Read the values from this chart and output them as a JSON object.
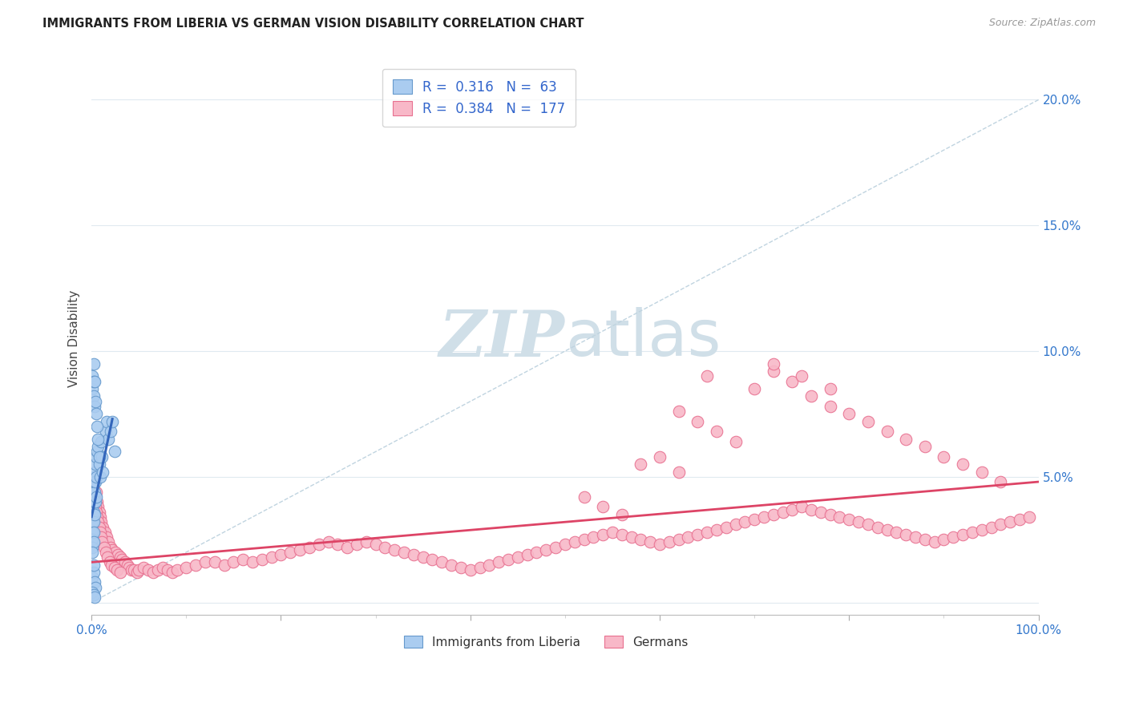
{
  "title": "IMMIGRANTS FROM LIBERIA VS GERMAN VISION DISABILITY CORRELATION CHART",
  "source": "Source: ZipAtlas.com",
  "ylabel": "Vision Disability",
  "xlim": [
    0.0,
    1.0
  ],
  "ylim": [
    -0.005,
    0.215
  ],
  "x_ticks": [
    0.0,
    0.2,
    0.4,
    0.6,
    0.8,
    1.0
  ],
  "x_tick_labels": [
    "0.0%",
    "",
    "",
    "",
    "",
    "100.0%"
  ],
  "y_ticks": [
    0.0,
    0.05,
    0.1,
    0.15,
    0.2
  ],
  "y_tick_labels": [
    "",
    "5.0%",
    "10.0%",
    "15.0%",
    "20.0%"
  ],
  "blue_R": 0.316,
  "blue_N": 63,
  "pink_R": 0.384,
  "pink_N": 177,
  "blue_color": "#aaccf0",
  "pink_color": "#f8b8c8",
  "blue_edge_color": "#6699cc",
  "pink_edge_color": "#e87090",
  "blue_line_color": "#3366bb",
  "pink_line_color": "#dd4466",
  "diag_line_color": "#c0d4e0",
  "watermark_color": "#d0dfe8",
  "background_color": "#ffffff",
  "grid_color": "#e0eaf0",
  "legend_label_blue": "Immigrants from Liberia",
  "legend_label_pink": "Germans",
  "blue_line_x": [
    0.0,
    0.022
  ],
  "blue_line_y": [
    0.034,
    0.073
  ],
  "pink_line_x": [
    0.0,
    1.0
  ],
  "pink_line_y": [
    0.016,
    0.048
  ],
  "blue_scatter_x": [
    0.001,
    0.001,
    0.001,
    0.001,
    0.001,
    0.001,
    0.001,
    0.001,
    0.001,
    0.002,
    0.002,
    0.002,
    0.002,
    0.002,
    0.002,
    0.002,
    0.002,
    0.003,
    0.003,
    0.003,
    0.003,
    0.003,
    0.004,
    0.004,
    0.004,
    0.005,
    0.005,
    0.005,
    0.006,
    0.007,
    0.008,
    0.009,
    0.01,
    0.011,
    0.012,
    0.015,
    0.016,
    0.018,
    0.02,
    0.022,
    0.024,
    0.001,
    0.001,
    0.002,
    0.002,
    0.003,
    0.001,
    0.002,
    0.003,
    0.004,
    0.001,
    0.002,
    0.001,
    0.002,
    0.003,
    0.002,
    0.003,
    0.004,
    0.005,
    0.006,
    0.007,
    0.008
  ],
  "blue_scatter_y": [
    0.048,
    0.045,
    0.042,
    0.038,
    0.035,
    0.032,
    0.028,
    0.025,
    0.022,
    0.05,
    0.047,
    0.044,
    0.04,
    0.036,
    0.032,
    0.028,
    0.024,
    0.052,
    0.048,
    0.044,
    0.04,
    0.035,
    0.055,
    0.048,
    0.04,
    0.058,
    0.05,
    0.042,
    0.06,
    0.062,
    0.055,
    0.05,
    0.064,
    0.058,
    0.052,
    0.068,
    0.072,
    0.065,
    0.068,
    0.072,
    0.06,
    0.085,
    0.09,
    0.082,
    0.088,
    0.078,
    0.01,
    0.012,
    0.008,
    0.006,
    0.02,
    0.015,
    0.004,
    0.003,
    0.002,
    0.095,
    0.088,
    0.08,
    0.075,
    0.07,
    0.065,
    0.058
  ],
  "pink_scatter_x": [
    0.001,
    0.002,
    0.003,
    0.004,
    0.005,
    0.006,
    0.007,
    0.008,
    0.009,
    0.01,
    0.012,
    0.014,
    0.016,
    0.018,
    0.02,
    0.022,
    0.025,
    0.028,
    0.03,
    0.032,
    0.035,
    0.038,
    0.04,
    0.042,
    0.045,
    0.048,
    0.05,
    0.055,
    0.06,
    0.065,
    0.07,
    0.075,
    0.08,
    0.085,
    0.09,
    0.1,
    0.11,
    0.12,
    0.13,
    0.14,
    0.15,
    0.16,
    0.17,
    0.18,
    0.19,
    0.2,
    0.21,
    0.22,
    0.23,
    0.24,
    0.25,
    0.26,
    0.27,
    0.28,
    0.29,
    0.3,
    0.31,
    0.32,
    0.33,
    0.34,
    0.35,
    0.36,
    0.37,
    0.38,
    0.39,
    0.4,
    0.41,
    0.42,
    0.43,
    0.44,
    0.45,
    0.46,
    0.47,
    0.48,
    0.49,
    0.5,
    0.51,
    0.52,
    0.53,
    0.54,
    0.55,
    0.56,
    0.57,
    0.58,
    0.59,
    0.6,
    0.61,
    0.62,
    0.63,
    0.64,
    0.65,
    0.66,
    0.67,
    0.68,
    0.69,
    0.7,
    0.71,
    0.72,
    0.73,
    0.74,
    0.75,
    0.76,
    0.77,
    0.78,
    0.79,
    0.8,
    0.81,
    0.82,
    0.83,
    0.84,
    0.85,
    0.86,
    0.87,
    0.88,
    0.89,
    0.9,
    0.91,
    0.92,
    0.93,
    0.94,
    0.95,
    0.96,
    0.97,
    0.98,
    0.99,
    0.001,
    0.002,
    0.003,
    0.004,
    0.005,
    0.006,
    0.007,
    0.008,
    0.009,
    0.01,
    0.011,
    0.013,
    0.015,
    0.017,
    0.019,
    0.021,
    0.024,
    0.027,
    0.03,
    0.65,
    0.7,
    0.72,
    0.74,
    0.76,
    0.78,
    0.8,
    0.82,
    0.84,
    0.86,
    0.88,
    0.9,
    0.92,
    0.94,
    0.96,
    0.62,
    0.64,
    0.66,
    0.68,
    0.58,
    0.6,
    0.62,
    0.72,
    0.75,
    0.78,
    0.52,
    0.54,
    0.56
  ],
  "pink_scatter_y": [
    0.038,
    0.04,
    0.042,
    0.038,
    0.044,
    0.04,
    0.038,
    0.036,
    0.034,
    0.032,
    0.03,
    0.028,
    0.026,
    0.024,
    0.022,
    0.021,
    0.02,
    0.019,
    0.018,
    0.017,
    0.016,
    0.015,
    0.014,
    0.013,
    0.013,
    0.012,
    0.013,
    0.014,
    0.013,
    0.012,
    0.013,
    0.014,
    0.013,
    0.012,
    0.013,
    0.014,
    0.015,
    0.016,
    0.016,
    0.015,
    0.016,
    0.017,
    0.016,
    0.017,
    0.018,
    0.019,
    0.02,
    0.021,
    0.022,
    0.023,
    0.024,
    0.023,
    0.022,
    0.023,
    0.024,
    0.023,
    0.022,
    0.021,
    0.02,
    0.019,
    0.018,
    0.017,
    0.016,
    0.015,
    0.014,
    0.013,
    0.014,
    0.015,
    0.016,
    0.017,
    0.018,
    0.019,
    0.02,
    0.021,
    0.022,
    0.023,
    0.024,
    0.025,
    0.026,
    0.027,
    0.028,
    0.027,
    0.026,
    0.025,
    0.024,
    0.023,
    0.024,
    0.025,
    0.026,
    0.027,
    0.028,
    0.029,
    0.03,
    0.031,
    0.032,
    0.033,
    0.034,
    0.035,
    0.036,
    0.037,
    0.038,
    0.037,
    0.036,
    0.035,
    0.034,
    0.033,
    0.032,
    0.031,
    0.03,
    0.029,
    0.028,
    0.027,
    0.026,
    0.025,
    0.024,
    0.025,
    0.026,
    0.027,
    0.028,
    0.029,
    0.03,
    0.031,
    0.032,
    0.033,
    0.034,
    0.042,
    0.044,
    0.04,
    0.038,
    0.036,
    0.034,
    0.032,
    0.03,
    0.028,
    0.026,
    0.024,
    0.022,
    0.02,
    0.018,
    0.016,
    0.015,
    0.014,
    0.013,
    0.012,
    0.09,
    0.085,
    0.092,
    0.088,
    0.082,
    0.078,
    0.075,
    0.072,
    0.068,
    0.065,
    0.062,
    0.058,
    0.055,
    0.052,
    0.048,
    0.076,
    0.072,
    0.068,
    0.064,
    0.055,
    0.058,
    0.052,
    0.095,
    0.09,
    0.085,
    0.042,
    0.038,
    0.035
  ]
}
